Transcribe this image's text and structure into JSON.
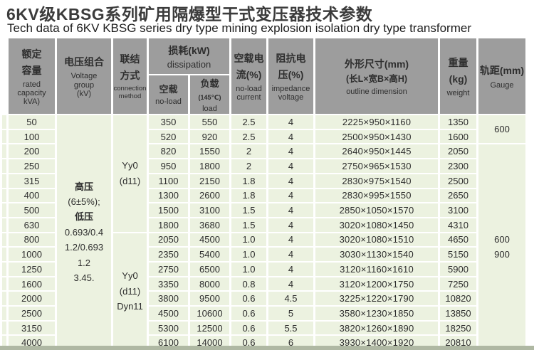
{
  "page": {
    "title_zh": "6KV级KBSG系列矿用隔爆型干式变压器技术参数",
    "title_en": "Tech data of 6KV KBSG series dry type mining explosion isolation dry type transformer"
  },
  "colors": {
    "header_bg": "#9d9d9d",
    "row_bg": "#ecf2e0",
    "grid": "#ffffff",
    "bottom_strip": "#afb8a3"
  },
  "table": {
    "headers": {
      "capacity": {
        "zh": [
          "额定",
          "容量"
        ],
        "en": [
          "rated",
          "capacity",
          "kVA)"
        ]
      },
      "voltage": {
        "zh": "电压组合",
        "en": [
          "Voltage",
          "group",
          "(kV)"
        ]
      },
      "connection": {
        "zh": [
          "联结",
          "方式"
        ],
        "en": [
          "connection",
          "method"
        ]
      },
      "dissipation": {
        "zh": "损耗(kW)",
        "en": "dissipation"
      },
      "no_load_loss": {
        "zh": "空载",
        "en": "no-load"
      },
      "load_loss": {
        "zh": "负载",
        "note": "(145℃)",
        "en": "load"
      },
      "no_load_current": {
        "zh": [
          "空载电",
          "流(%)"
        ],
        "en": [
          "no-load",
          "current"
        ]
      },
      "impedance": {
        "zh": [
          "阻抗电",
          "压(%)"
        ],
        "en": [
          "impedance",
          "voltage"
        ]
      },
      "dimension": {
        "zh": "外形尺寸(mm)",
        "zh2": "(长L×宽B×高H)",
        "en": "outline dimension"
      },
      "weight": {
        "zh": "重量(kg)",
        "en": "weight"
      },
      "gauge": {
        "zh": "轨距(mm)",
        "en": "Gauge"
      }
    },
    "voltage_group_lines": [
      "高压",
      "(6±5%);",
      "低压",
      "0.693/0.4",
      "1.2/0.693",
      "1.2",
      "3.45."
    ],
    "connection_cells": [
      {
        "rows": 8,
        "lines": [
          "Yy0",
          "(d11)"
        ]
      },
      {
        "rows": 8,
        "lines": [
          "Yy0",
          "(d11)",
          "Dyn11"
        ]
      }
    ],
    "gauge_cells": [
      {
        "rows": 2,
        "lines": [
          "600"
        ]
      },
      {
        "rows": 14,
        "lines": [
          "600",
          "900"
        ]
      }
    ],
    "rows": [
      {
        "capacity": "50",
        "no_load": "350",
        "load": "550",
        "current": "2.5",
        "impedance": "4",
        "dimension": "2225×950×1160",
        "weight": "1350"
      },
      {
        "capacity": "100",
        "no_load": "520",
        "load": "920",
        "current": "2.5",
        "impedance": "4",
        "dimension": "2500×950×1430",
        "weight": "1600"
      },
      {
        "capacity": "200",
        "no_load": "820",
        "load": "1550",
        "current": "2",
        "impedance": "4",
        "dimension": "2640×950×1445",
        "weight": "2050"
      },
      {
        "capacity": "250",
        "no_load": "950",
        "load": "1800",
        "current": "2",
        "impedance": "4",
        "dimension": "2750×965×1530",
        "weight": "2300"
      },
      {
        "capacity": "315",
        "no_load": "1100",
        "load": "2150",
        "current": "1.8",
        "impedance": "4",
        "dimension": "2830×975×1540",
        "weight": "2500"
      },
      {
        "capacity": "400",
        "no_load": "1300",
        "load": "2600",
        "current": "1.8",
        "impedance": "4",
        "dimension": "2830×995×1550",
        "weight": "2650"
      },
      {
        "capacity": "500",
        "no_load": "1500",
        "load": "3100",
        "current": "1.5",
        "impedance": "4",
        "dimension": "2850×1050×1570",
        "weight": "3100"
      },
      {
        "capacity": "630",
        "no_load": "1800",
        "load": "3680",
        "current": "1.5",
        "impedance": "4",
        "dimension": "3020×1080×1450",
        "weight": "4310"
      },
      {
        "capacity": "800",
        "no_load": "2050",
        "load": "4500",
        "current": "1.0",
        "impedance": "4",
        "dimension": "3020×1080×1510",
        "weight": "4650"
      },
      {
        "capacity": "1000",
        "no_load": "2350",
        "load": "5400",
        "current": "1.0",
        "impedance": "4",
        "dimension": "3030×1130×1540",
        "weight": "5150"
      },
      {
        "capacity": "1250",
        "no_load": "2750",
        "load": "6500",
        "current": "1.0",
        "impedance": "4",
        "dimension": "3120×1160×1610",
        "weight": "5900"
      },
      {
        "capacity": "1600",
        "no_load": "3350",
        "load": "8000",
        "current": "0.8",
        "impedance": "4",
        "dimension": "3120×1200×1750",
        "weight": "7250"
      },
      {
        "capacity": "2000",
        "no_load": "3800",
        "load": "9500",
        "current": "0.6",
        "impedance": "4.5",
        "dimension": "3225×1220×1790",
        "weight": "10820"
      },
      {
        "capacity": "2500",
        "no_load": "4500",
        "load": "10600",
        "current": "0.6",
        "impedance": "5",
        "dimension": "3580×1230×1850",
        "weight": "13850"
      },
      {
        "capacity": "3150",
        "no_load": "5300",
        "load": "12500",
        "current": "0.6",
        "impedance": "5.5",
        "dimension": "3820×1260×1890",
        "weight": "18250"
      },
      {
        "capacity": "4000",
        "no_load": "6100",
        "load": "14000",
        "current": "0.6",
        "impedance": "6",
        "dimension": "3930×1400×1920",
        "weight": "20810"
      }
    ]
  }
}
